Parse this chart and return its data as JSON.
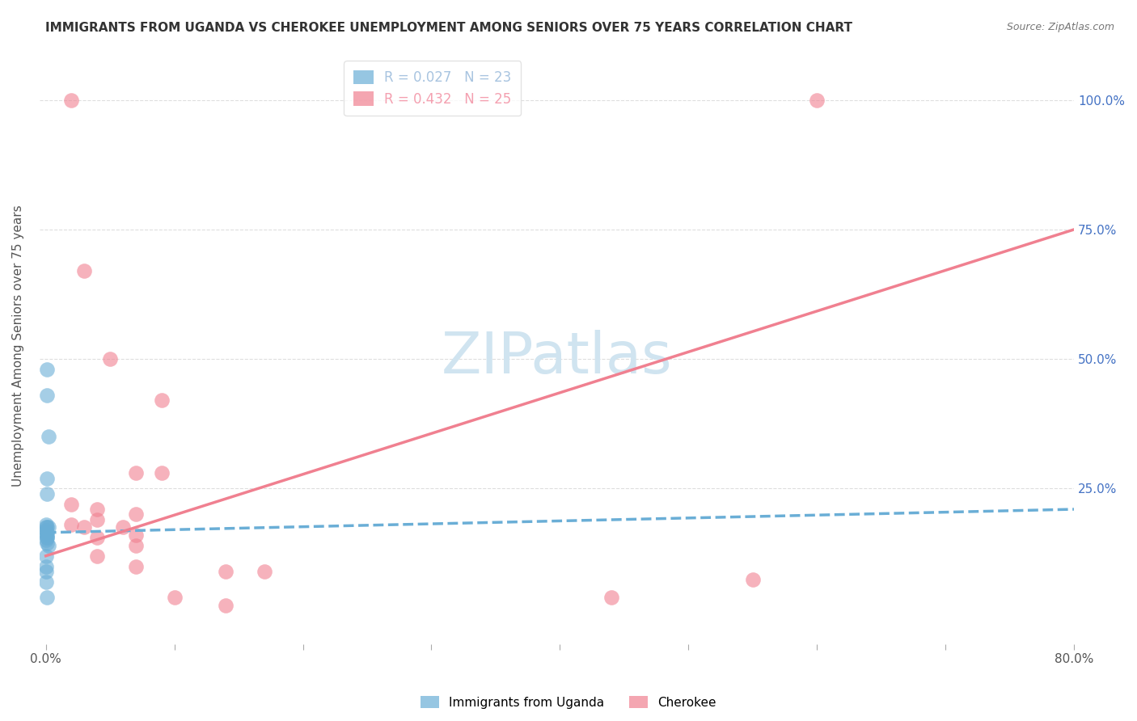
{
  "title": "IMMIGRANTS FROM UGANDA VS CHEROKEE UNEMPLOYMENT AMONG SENIORS OVER 75 YEARS CORRELATION CHART",
  "source": "Source: ZipAtlas.com",
  "ylabel": "Unemployment Among Seniors over 75 years",
  "ytick_labels": [
    "100.0%",
    "75.0%",
    "50.0%",
    "25.0%"
  ],
  "ytick_values": [
    1.0,
    0.75,
    0.5,
    0.25
  ],
  "xlim": [
    0.0,
    0.8
  ],
  "ylim": [
    -0.05,
    1.1
  ],
  "legend_entries": [
    {
      "label": "R = 0.027   N = 23",
      "color": "#a8c4e0"
    },
    {
      "label": "R = 0.432   N = 25",
      "color": "#f4a0b0"
    }
  ],
  "uganda_scatter": [
    [
      0.001,
      0.48
    ],
    [
      0.001,
      0.43
    ],
    [
      0.002,
      0.35
    ],
    [
      0.001,
      0.27
    ],
    [
      0.001,
      0.24
    ],
    [
      0.0005,
      0.18
    ],
    [
      0.0005,
      0.175
    ],
    [
      0.001,
      0.175
    ],
    [
      0.002,
      0.175
    ],
    [
      0.0003,
      0.17
    ],
    [
      0.0004,
      0.165
    ],
    [
      0.0006,
      0.165
    ],
    [
      0.0007,
      0.16
    ],
    [
      0.0008,
      0.155
    ],
    [
      0.001,
      0.155
    ],
    [
      0.0005,
      0.15
    ],
    [
      0.001,
      0.145
    ],
    [
      0.002,
      0.14
    ],
    [
      0.0003,
      0.12
    ],
    [
      0.0004,
      0.1
    ],
    [
      0.0002,
      0.09
    ],
    [
      0.0003,
      0.07
    ],
    [
      0.001,
      0.04
    ]
  ],
  "cherokee_scatter": [
    [
      0.02,
      1.0
    ],
    [
      0.6,
      1.0
    ],
    [
      0.03,
      0.67
    ],
    [
      0.05,
      0.5
    ],
    [
      0.09,
      0.42
    ],
    [
      0.07,
      0.28
    ],
    [
      0.09,
      0.28
    ],
    [
      0.02,
      0.22
    ],
    [
      0.04,
      0.21
    ],
    [
      0.07,
      0.2
    ],
    [
      0.04,
      0.19
    ],
    [
      0.02,
      0.18
    ],
    [
      0.03,
      0.175
    ],
    [
      0.06,
      0.175
    ],
    [
      0.07,
      0.16
    ],
    [
      0.04,
      0.155
    ],
    [
      0.07,
      0.14
    ],
    [
      0.04,
      0.12
    ],
    [
      0.07,
      0.1
    ],
    [
      0.14,
      0.09
    ],
    [
      0.17,
      0.09
    ],
    [
      0.1,
      0.04
    ],
    [
      0.14,
      0.025
    ],
    [
      0.44,
      0.04
    ],
    [
      0.55,
      0.075
    ]
  ],
  "uganda_line": [
    [
      0.0,
      0.165
    ],
    [
      0.8,
      0.21
    ]
  ],
  "cherokee_line": [
    [
      0.0,
      0.12
    ],
    [
      0.8,
      0.75
    ]
  ],
  "uganda_color": "#6aaed6",
  "cherokee_color": "#f08090",
  "scatter_size": 180,
  "background_color": "#ffffff",
  "watermark": "ZIPatlas",
  "watermark_color": "#d0e4f0"
}
